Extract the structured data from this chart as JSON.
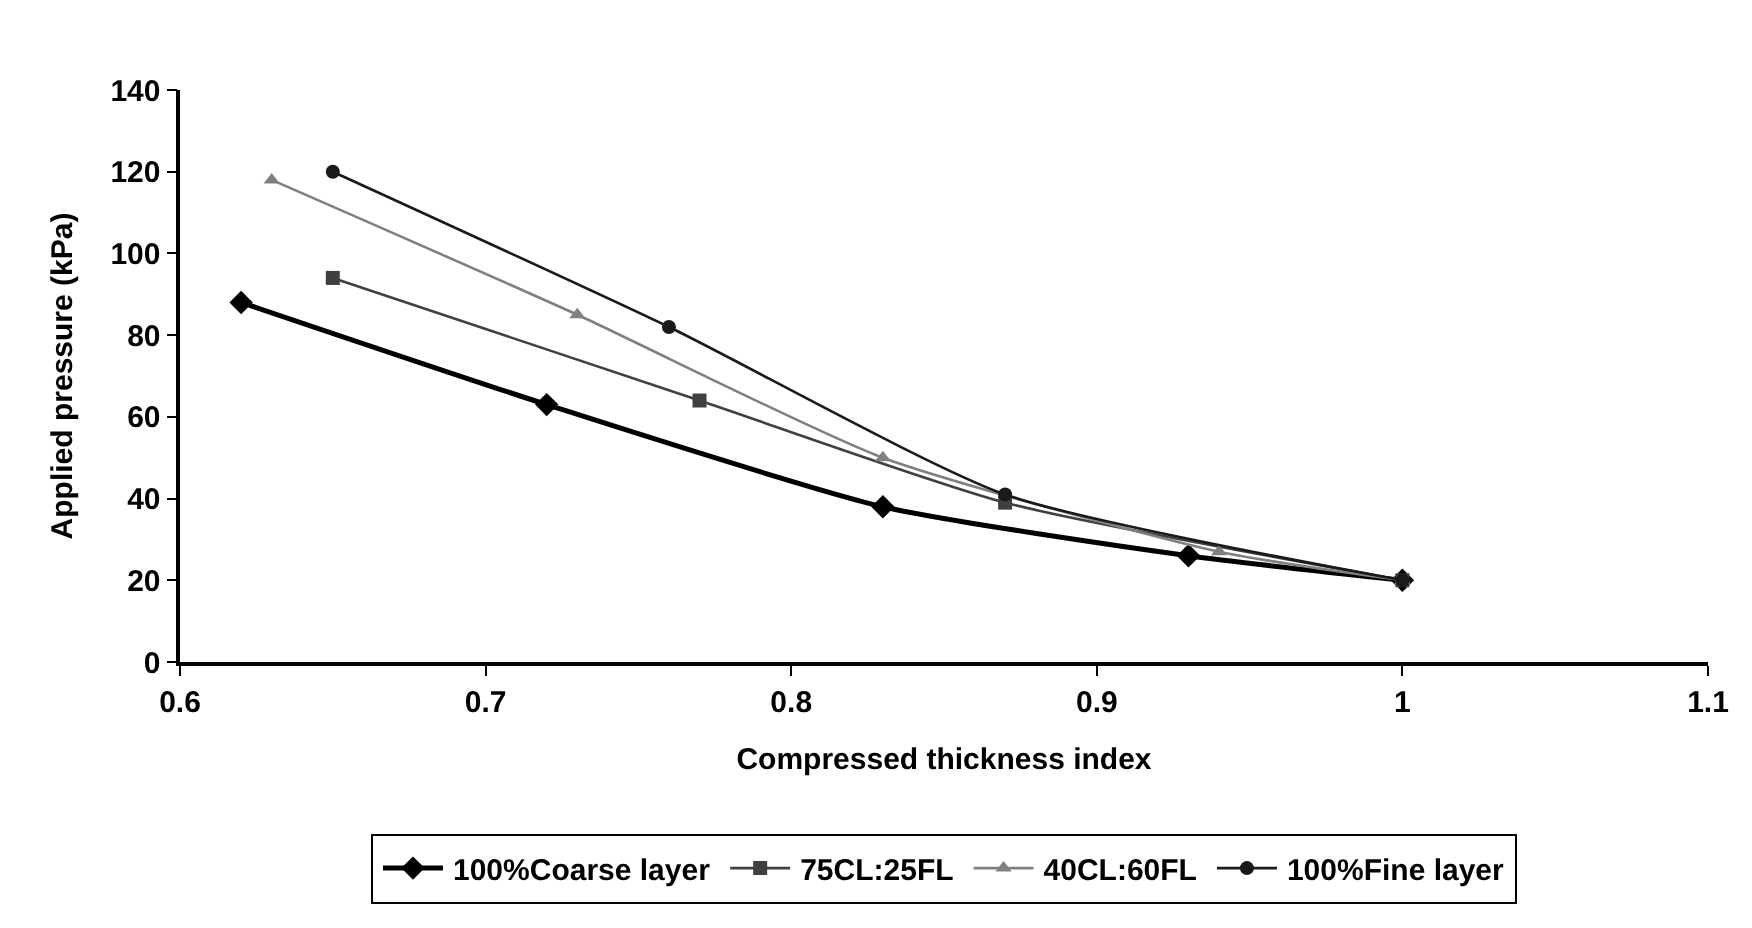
{
  "chart_data": {
    "type": "line",
    "xlabel": "Compressed thickness index",
    "ylabel": "Applied pressure (kPa)",
    "xlim": [
      0.6,
      1.1
    ],
    "xticks": [
      0.6,
      0.7,
      0.8,
      0.9,
      1,
      1.1
    ],
    "ylim": [
      0,
      140
    ],
    "yticks": [
      0,
      20,
      40,
      60,
      80,
      100,
      120,
      140
    ],
    "legend": "bottom",
    "line_style": "solid",
    "series": [
      {
        "name": "100%Coarse layer",
        "color": "#000000",
        "marker": "diamond",
        "x": [
          0.62,
          0.72,
          0.83,
          0.93,
          1.0
        ],
        "values": [
          88,
          63,
          38,
          26,
          20
        ]
      },
      {
        "name": "75CL:25FL",
        "color": "#404040",
        "marker": "square",
        "x": [
          0.65,
          0.77,
          0.87,
          1.0
        ],
        "values": [
          94,
          64,
          39,
          20
        ]
      },
      {
        "name": "40CL:60FL",
        "color": "#808080",
        "marker": "triangle",
        "x": [
          0.63,
          0.73,
          0.83,
          0.94,
          1.0
        ],
        "values": [
          118,
          85,
          50,
          27,
          20
        ]
      },
      {
        "name": "100%Fine layer",
        "color": "#1a1a1a",
        "marker": "circle",
        "x": [
          0.65,
          0.76,
          0.87,
          1.0
        ],
        "values": [
          120,
          82,
          41,
          20
        ]
      }
    ]
  }
}
